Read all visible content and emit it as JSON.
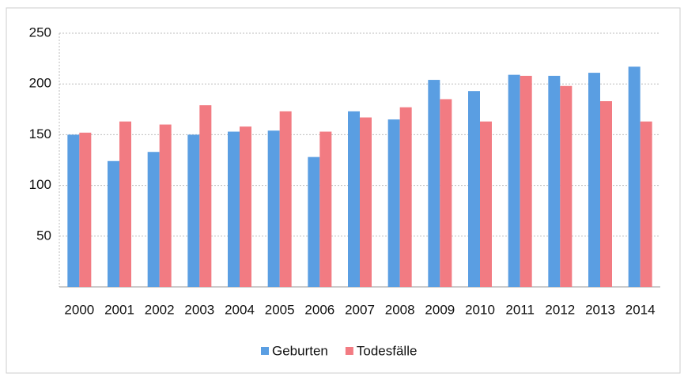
{
  "chart_data": {
    "type": "bar",
    "categories": [
      "2000",
      "2001",
      "2002",
      "2003",
      "2004",
      "2005",
      "2006",
      "2007",
      "2008",
      "2009",
      "2010",
      "2011",
      "2012",
      "2013",
      "2014"
    ],
    "series": [
      {
        "name": "Geburten",
        "color": "#5a9ee2",
        "values": [
          150,
          124,
          133,
          150,
          153,
          154,
          128,
          173,
          165,
          204,
          193,
          209,
          208,
          211,
          217
        ]
      },
      {
        "name": "Todesfälle",
        "color": "#f27b82",
        "values": [
          152,
          163,
          160,
          179,
          158,
          173,
          153,
          167,
          177,
          185,
          163,
          208,
          198,
          183,
          163
        ]
      }
    ],
    "ylim": [
      0,
      250
    ],
    "yticks": [
      50,
      100,
      150,
      200,
      250
    ],
    "grid": true,
    "legend": "bottom"
  }
}
